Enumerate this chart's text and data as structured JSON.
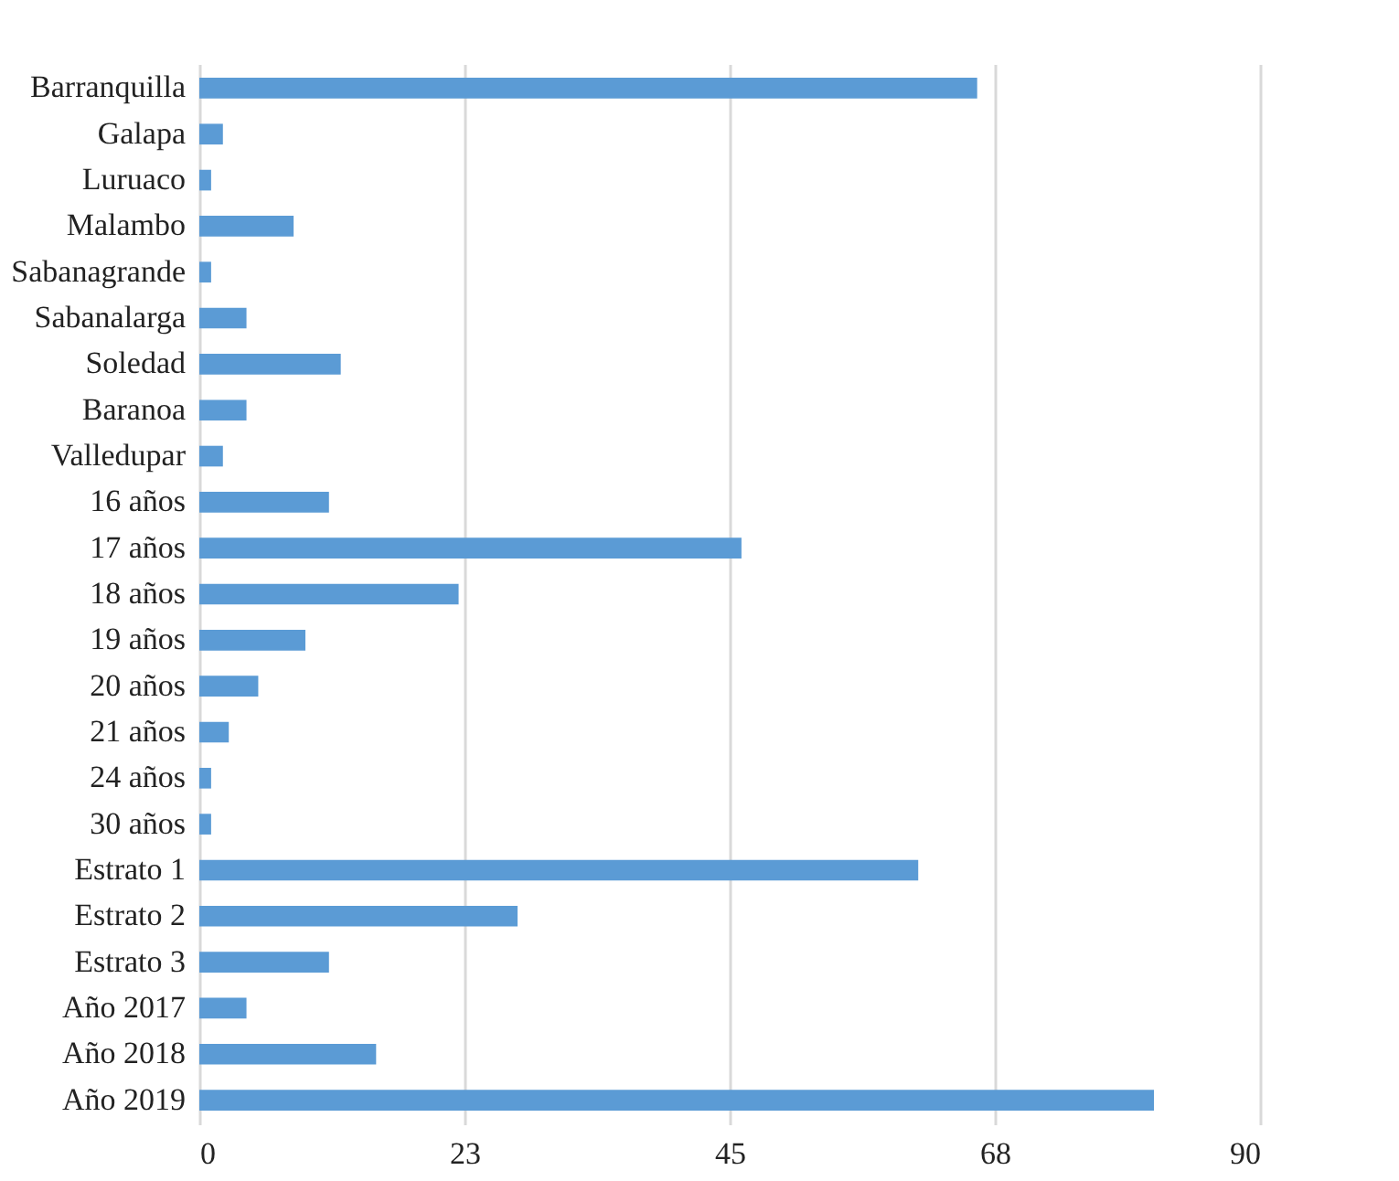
{
  "chart_data": {
    "type": "bar",
    "orientation": "horizontal",
    "categories": [
      "Barranquilla",
      "Galapa",
      "Luruaco",
      "Malambo",
      "Sabanagrande",
      "Sabanalarga",
      "Soledad",
      "Baranoa",
      "Valledupar",
      "16 años",
      "17 años",
      "18 años",
      "19 años",
      "20 años",
      "21 años",
      "24 años",
      "30 años",
      "Estrato 1",
      "Estrato 2",
      "Estrato 3",
      "Año 2017",
      "Año 2018",
      "Año 2019"
    ],
    "values": [
      66,
      2,
      1,
      8,
      1,
      4,
      12,
      4,
      2,
      11,
      46,
      22,
      9,
      5,
      2.5,
      1,
      1,
      61,
      27,
      11,
      4,
      15,
      81
    ],
    "color": "#5b9bd5",
    "xlim": [
      0,
      90
    ],
    "xticks": [
      0,
      {
        "value": 22.5,
        "label": "23"
      },
      45,
      {
        "value": 67.5,
        "label": "68"
      },
      90
    ],
    "grid": "x"
  }
}
